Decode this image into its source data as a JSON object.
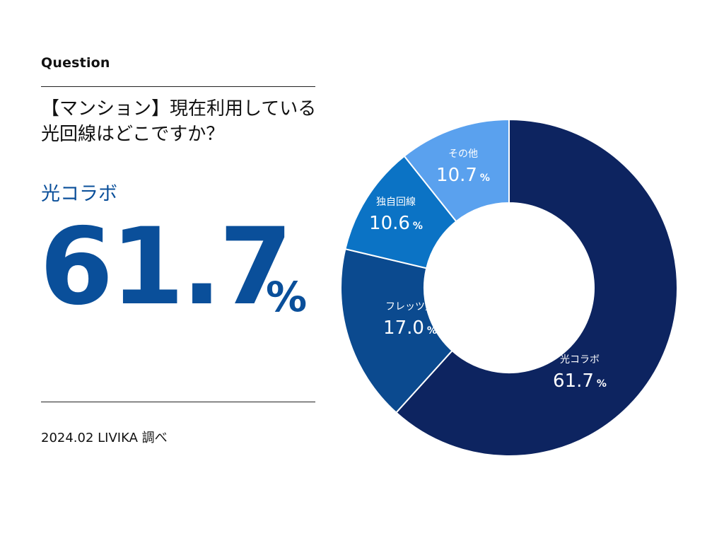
{
  "header": {
    "label": "Question",
    "question_line1": "【マンション】現在利用している",
    "question_line2": "光回線はどこですか？"
  },
  "highlight": {
    "label": "光コラボ",
    "value": "61.7",
    "unit": "%"
  },
  "source": "2024.02 LIVIKA 調べ",
  "chart_data": {
    "type": "pie",
    "donut": true,
    "unit": "%",
    "slices": [
      {
        "label": "光コラボ",
        "value": 61.7,
        "color": "#0d2460"
      },
      {
        "label": "フレッツ光",
        "value": 17.0,
        "color": "#0b4a8f"
      },
      {
        "label": "独自回線",
        "value": 10.6,
        "color": "#0b73c5"
      },
      {
        "label": "その他",
        "value": 10.7,
        "color": "#5aa1ee"
      }
    ]
  }
}
